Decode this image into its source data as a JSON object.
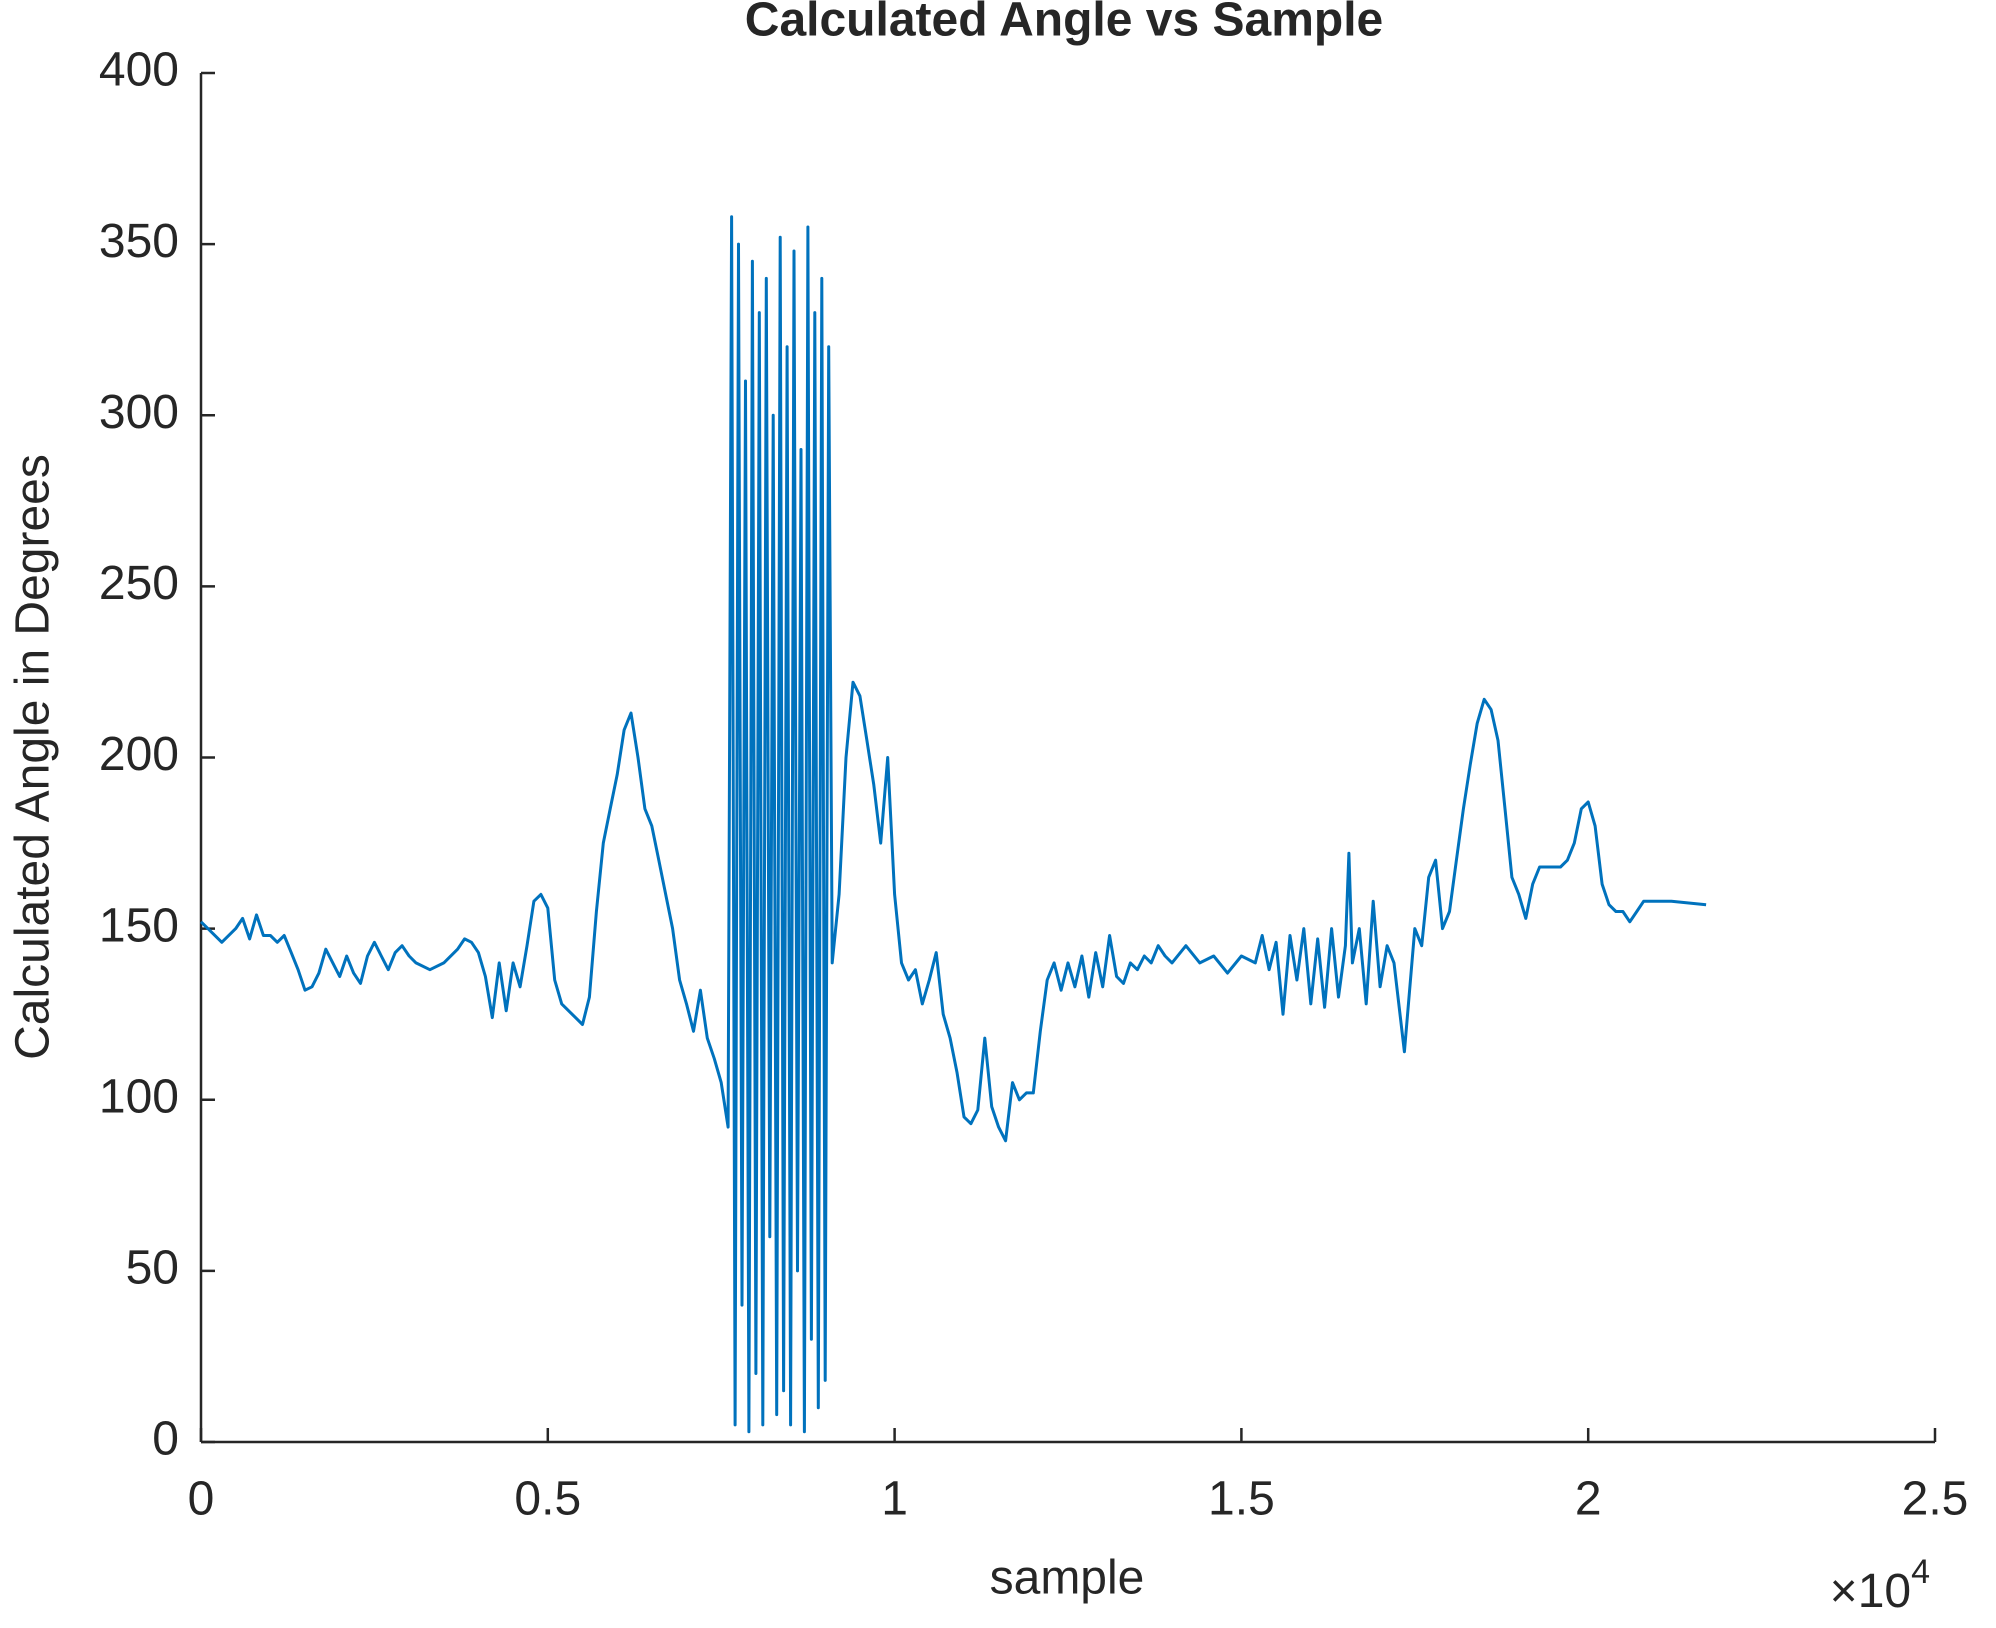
{
  "chart_data": {
    "type": "line",
    "title": "Calculated Angle vs Sample",
    "x_label": "sample",
    "y_label": "Calculated Angle in Degrees",
    "x_multiplier": {
      "base": "×10",
      "exponent": "4"
    },
    "color": "#0072bd",
    "xlim": [
      0,
      2.5
    ],
    "xticks": [
      0,
      0.5,
      1,
      1.5,
      2,
      2.5
    ],
    "ylim": [
      0,
      400
    ],
    "yticks": [
      0,
      50,
      100,
      150,
      200,
      250,
      300,
      350,
      400
    ],
    "grid": false,
    "x": [
      0,
      0.01,
      0.03,
      0.05,
      0.06,
      0.07,
      0.08,
      0.09,
      0.1,
      0.11,
      0.12,
      0.13,
      0.14,
      0.15,
      0.16,
      0.17,
      0.18,
      0.19,
      0.2,
      0.21,
      0.22,
      0.23,
      0.24,
      0.25,
      0.26,
      0.27,
      0.28,
      0.29,
      0.3,
      0.31,
      0.33,
      0.35,
      0.37,
      0.38,
      0.39,
      0.4,
      0.41,
      0.42,
      0.43,
      0.44,
      0.45,
      0.46,
      0.47,
      0.48,
      0.49,
      0.5,
      0.51,
      0.52,
      0.54,
      0.55,
      0.56,
      0.57,
      0.58,
      0.59,
      0.6,
      0.61,
      0.62,
      0.63,
      0.64,
      0.65,
      0.66,
      0.67,
      0.68,
      0.69,
      0.7,
      0.71,
      0.72,
      0.73,
      0.74,
      0.75,
      0.76,
      0.765,
      0.77,
      0.775,
      0.78,
      0.785,
      0.79,
      0.795,
      0.8,
      0.805,
      0.81,
      0.815,
      0.82,
      0.825,
      0.83,
      0.835,
      0.84,
      0.845,
      0.85,
      0.855,
      0.86,
      0.865,
      0.87,
      0.875,
      0.88,
      0.885,
      0.89,
      0.895,
      0.9,
      0.905,
      0.91,
      0.92,
      0.93,
      0.94,
      0.95,
      0.96,
      0.97,
      0.98,
      0.99,
      1.0,
      1.01,
      1.02,
      1.03,
      1.04,
      1.05,
      1.06,
      1.07,
      1.08,
      1.09,
      1.1,
      1.11,
      1.12,
      1.13,
      1.14,
      1.15,
      1.16,
      1.17,
      1.18,
      1.19,
      1.2,
      1.21,
      1.22,
      1.23,
      1.24,
      1.25,
      1.26,
      1.27,
      1.28,
      1.29,
      1.3,
      1.31,
      1.32,
      1.33,
      1.34,
      1.35,
      1.36,
      1.37,
      1.38,
      1.39,
      1.4,
      1.42,
      1.44,
      1.46,
      1.48,
      1.5,
      1.52,
      1.53,
      1.54,
      1.55,
      1.56,
      1.57,
      1.58,
      1.59,
      1.6,
      1.61,
      1.62,
      1.63,
      1.64,
      1.65,
      1.655,
      1.66,
      1.67,
      1.68,
      1.69,
      1.7,
      1.71,
      1.72,
      1.735,
      1.75,
      1.76,
      1.77,
      1.78,
      1.79,
      1.8,
      1.81,
      1.82,
      1.83,
      1.84,
      1.85,
      1.86,
      1.87,
      1.88,
      1.89,
      1.9,
      1.91,
      1.92,
      1.93,
      1.94,
      1.96,
      1.97,
      1.98,
      1.99,
      2.0,
      2.01,
      2.02,
      2.03,
      2.04,
      2.05,
      2.06,
      2.07,
      2.08,
      2.12,
      2.17
    ],
    "values": [
      152,
      150,
      146,
      150,
      153,
      147,
      154,
      148,
      148,
      146,
      148,
      143,
      138,
      132,
      133,
      137,
      144,
      140,
      136,
      142,
      137,
      134,
      142,
      146,
      142,
      138,
      143,
      145,
      142,
      140,
      138,
      140,
      144,
      147,
      146,
      143,
      136,
      124,
      140,
      126,
      140,
      133,
      145,
      158,
      160,
      156,
      135,
      128,
      124,
      122,
      130,
      155,
      175,
      185,
      195,
      208,
      213,
      200,
      185,
      180,
      170,
      160,
      150,
      135,
      128,
      120,
      132,
      118,
      112,
      105,
      92,
      358,
      5,
      350,
      40,
      310,
      3,
      345,
      20,
      330,
      5,
      340,
      60,
      300,
      8,
      352,
      15,
      320,
      5,
      348,
      50,
      290,
      3,
      355,
      30,
      330,
      10,
      340,
      18,
      320,
      140,
      160,
      200,
      222,
      218,
      205,
      192,
      175,
      200,
      160,
      140,
      135,
      138,
      128,
      135,
      143,
      125,
      118,
      108,
      95,
      93,
      97,
      118,
      98,
      92,
      88,
      105,
      100,
      102,
      102,
      120,
      135,
      140,
      132,
      140,
      133,
      142,
      130,
      143,
      133,
      148,
      136,
      134,
      140,
      138,
      142,
      140,
      145,
      142,
      140,
      145,
      140,
      142,
      137,
      142,
      140,
      148,
      138,
      146,
      125,
      148,
      135,
      150,
      128,
      147,
      127,
      150,
      130,
      145,
      172,
      140,
      150,
      128,
      158,
      133,
      145,
      140,
      114,
      150,
      145,
      165,
      170,
      150,
      155,
      170,
      185,
      198,
      210,
      217,
      214,
      205,
      185,
      165,
      160,
      153,
      163,
      168,
      168,
      168,
      170,
      175,
      185,
      187,
      180,
      163,
      157,
      155,
      155,
      152,
      155,
      158,
      158,
      157
    ]
  }
}
